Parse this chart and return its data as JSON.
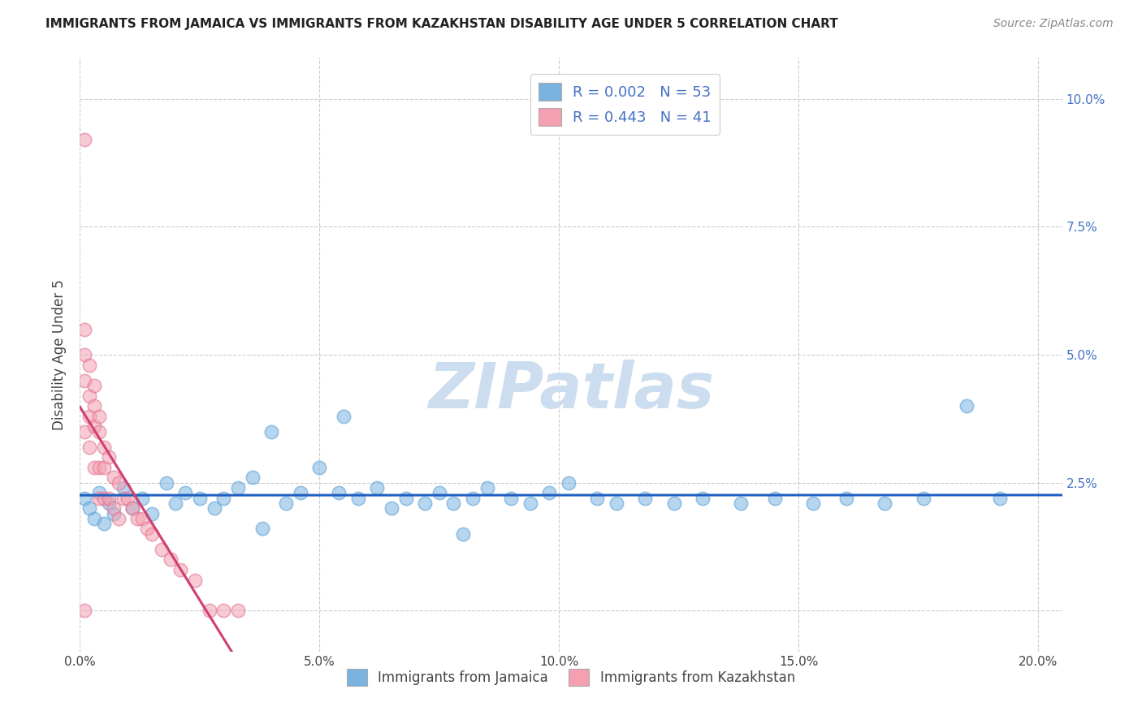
{
  "title": "IMMIGRANTS FROM JAMAICA VS IMMIGRANTS FROM KAZAKHSTAN DISABILITY AGE UNDER 5 CORRELATION CHART",
  "source": "Source: ZipAtlas.com",
  "ylabel": "Disability Age Under 5",
  "xlim": [
    0.0,
    0.205
  ],
  "ylim": [
    -0.008,
    0.108
  ],
  "xticks": [
    0.0,
    0.05,
    0.1,
    0.15,
    0.2
  ],
  "xtick_labels": [
    "0.0%",
    "5.0%",
    "10.0%",
    "15.0%",
    "20.0%"
  ],
  "yticks": [
    0.0,
    0.025,
    0.05,
    0.075,
    0.1
  ],
  "ytick_labels": [
    "",
    "2.5%",
    "5.0%",
    "7.5%",
    "10.0%"
  ],
  "jamaica_color": "#7ab3e0",
  "jamaica_edge": "#5a9fd4",
  "kazakhstan_color": "#f4a0b0",
  "kazakhstan_edge": "#e07090",
  "trend_jamaica_color": "#2060c0",
  "trend_kaz_solid_color": "#d04070",
  "trend_kaz_dash_color": "#e08090",
  "jamaica_R": 0.002,
  "jamaica_N": 53,
  "kazakhstan_R": 0.443,
  "kazakhstan_N": 41,
  "jamaica_x": [
    0.001,
    0.002,
    0.003,
    0.004,
    0.005,
    0.006,
    0.007,
    0.009,
    0.011,
    0.013,
    0.015,
    0.018,
    0.02,
    0.022,
    0.025,
    0.028,
    0.03,
    0.033,
    0.036,
    0.04,
    0.043,
    0.046,
    0.05,
    0.054,
    0.058,
    0.062,
    0.065,
    0.068,
    0.072,
    0.075,
    0.078,
    0.082,
    0.085,
    0.09,
    0.094,
    0.098,
    0.102,
    0.108,
    0.112,
    0.118,
    0.124,
    0.13,
    0.138,
    0.145,
    0.153,
    0.16,
    0.168,
    0.176,
    0.185,
    0.192,
    0.038,
    0.055,
    0.08
  ],
  "jamaica_y": [
    0.022,
    0.02,
    0.018,
    0.023,
    0.017,
    0.021,
    0.019,
    0.024,
    0.02,
    0.022,
    0.019,
    0.025,
    0.021,
    0.023,
    0.022,
    0.02,
    0.022,
    0.024,
    0.026,
    0.035,
    0.021,
    0.023,
    0.028,
    0.023,
    0.022,
    0.024,
    0.02,
    0.022,
    0.021,
    0.023,
    0.021,
    0.022,
    0.024,
    0.022,
    0.021,
    0.023,
    0.025,
    0.022,
    0.021,
    0.022,
    0.021,
    0.022,
    0.021,
    0.022,
    0.021,
    0.022,
    0.021,
    0.022,
    0.04,
    0.022,
    0.016,
    0.038,
    0.015
  ],
  "kazakhstan_x": [
    0.001,
    0.001,
    0.001,
    0.001,
    0.001,
    0.002,
    0.002,
    0.002,
    0.002,
    0.003,
    0.003,
    0.003,
    0.003,
    0.004,
    0.004,
    0.004,
    0.004,
    0.005,
    0.005,
    0.005,
    0.006,
    0.006,
    0.007,
    0.007,
    0.008,
    0.008,
    0.009,
    0.01,
    0.011,
    0.012,
    0.013,
    0.014,
    0.015,
    0.017,
    0.019,
    0.021,
    0.024,
    0.027,
    0.03,
    0.033,
    0.001
  ],
  "kazakhstan_y": [
    0.092,
    0.055,
    0.05,
    0.045,
    0.035,
    0.048,
    0.042,
    0.038,
    0.032,
    0.044,
    0.04,
    0.036,
    0.028,
    0.038,
    0.035,
    0.028,
    0.022,
    0.032,
    0.028,
    0.022,
    0.03,
    0.022,
    0.026,
    0.02,
    0.025,
    0.018,
    0.022,
    0.022,
    0.02,
    0.018,
    0.018,
    0.016,
    0.015,
    0.012,
    0.01,
    0.008,
    0.006,
    0.0,
    0.0,
    0.0,
    0.0
  ],
  "watermark_text": "ZIPatlas",
  "watermark_color": "#ccddf0",
  "legend_entries": [
    {
      "color": "#7ab3e0",
      "label": "R = 0.002   N = 53"
    },
    {
      "color": "#f4a0b0",
      "label": "R = 0.443   N = 41"
    }
  ],
  "bottom_legend": [
    {
      "color": "#7ab3e0",
      "label": "Immigrants from Jamaica"
    },
    {
      "color": "#f4a0b0",
      "label": "Immigrants from Kazakhstan"
    }
  ]
}
